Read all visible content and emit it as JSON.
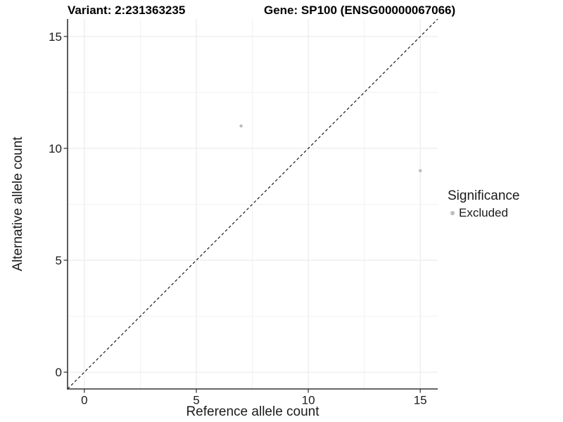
{
  "figure": {
    "variant_title": "Variant: 2:231363235",
    "gene_title": "Gene: SP100 (ENSG00000067066)"
  },
  "x_axis": {
    "label": "Reference allele count",
    "tick_labels": [
      "0",
      "5",
      "10",
      "15"
    ]
  },
  "y_axis": {
    "label": "Alternative allele count",
    "tick_labels": [
      "0",
      "5",
      "10",
      "15"
    ]
  },
  "legend": {
    "title": "Significance",
    "items": [
      {
        "label": "Excluded",
        "key_color": "#bebebe"
      }
    ]
  },
  "colors": {
    "point": "#bebebe",
    "grid_major": "#e7e7e7",
    "grid_minor": "#f1f1f1",
    "axis": "#333333",
    "tick": "#2b2b2b",
    "reference_line": "#1a1a1a",
    "text": "#1a1a1a"
  },
  "chart_data": {
    "type": "scatter",
    "title": "Variant: 2:231363235 — Gene: SP100 (ENSG00000067066)",
    "xlabel": "Reference allele count",
    "ylabel": "Alternative allele count",
    "xlim": [
      -0.75,
      15.78
    ],
    "ylim": [
      -0.75,
      15.78
    ],
    "x_ticks": [
      0,
      5,
      10,
      15
    ],
    "y_ticks": [
      0,
      5,
      10,
      15
    ],
    "x_minor_ticks": [
      2.5,
      7.5,
      12.5
    ],
    "y_minor_ticks": [
      2.5,
      7.5,
      12.5
    ],
    "grid": "major+minor",
    "legend_position": "right",
    "series": [
      {
        "name": "Excluded",
        "color": "#bebebe",
        "points": [
          {
            "x": 7,
            "y": 11
          },
          {
            "x": 15,
            "y": 9
          }
        ]
      }
    ],
    "reference_line": {
      "type": "identity",
      "slope": 1,
      "intercept": 0,
      "style": "dashed"
    }
  }
}
